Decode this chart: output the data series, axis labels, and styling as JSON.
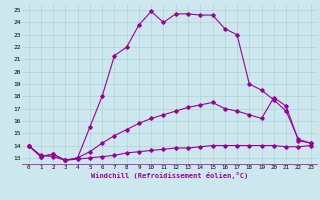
{
  "xlabel": "Windchill (Refroidissement éolien,°C)",
  "background_color": "#cce8ee",
  "line_color": "#990099",
  "grid_color": "#aacccc",
  "xlim": [
    -0.5,
    23.5
  ],
  "ylim": [
    12.5,
    25.5
  ],
  "xticks": [
    0,
    1,
    2,
    3,
    4,
    5,
    6,
    7,
    8,
    9,
    10,
    11,
    12,
    13,
    14,
    15,
    16,
    17,
    18,
    19,
    20,
    21,
    22,
    23
  ],
  "yticks": [
    13,
    14,
    15,
    16,
    17,
    18,
    19,
    20,
    21,
    22,
    23,
    24,
    25
  ],
  "line1_x": [
    0,
    1,
    2,
    3,
    4,
    5,
    6,
    7,
    8,
    9,
    10,
    11,
    12,
    13,
    14,
    15,
    16,
    17,
    18,
    19,
    20,
    21,
    22,
    23
  ],
  "line1_y": [
    14.0,
    13.1,
    13.3,
    12.8,
    13.0,
    15.5,
    18.0,
    21.3,
    22.0,
    23.8,
    24.9,
    24.0,
    24.7,
    24.7,
    24.6,
    24.6,
    23.5,
    23.0,
    19.0,
    18.5,
    17.7,
    16.8,
    14.5,
    14.2
  ],
  "line2_x": [
    0,
    1,
    2,
    3,
    4,
    5,
    6,
    7,
    8,
    9,
    10,
    11,
    12,
    13,
    14,
    15,
    16,
    17,
    18,
    19,
    20,
    21,
    22,
    23
  ],
  "line2_y": [
    14.0,
    13.1,
    13.3,
    12.8,
    13.0,
    13.5,
    14.2,
    14.8,
    15.3,
    15.8,
    16.2,
    16.5,
    16.8,
    17.1,
    17.3,
    17.5,
    17.0,
    16.8,
    16.5,
    16.2,
    17.9,
    17.2,
    14.4,
    14.2
  ],
  "line3_x": [
    0,
    1,
    2,
    3,
    4,
    5,
    6,
    7,
    8,
    9,
    10,
    11,
    12,
    13,
    14,
    15,
    16,
    17,
    18,
    19,
    20,
    21,
    22,
    23
  ],
  "line3_y": [
    14.0,
    13.2,
    13.1,
    12.8,
    12.9,
    13.0,
    13.1,
    13.2,
    13.4,
    13.5,
    13.6,
    13.7,
    13.8,
    13.8,
    13.9,
    14.0,
    14.0,
    14.0,
    14.0,
    14.0,
    14.0,
    13.9,
    13.9,
    14.0
  ]
}
